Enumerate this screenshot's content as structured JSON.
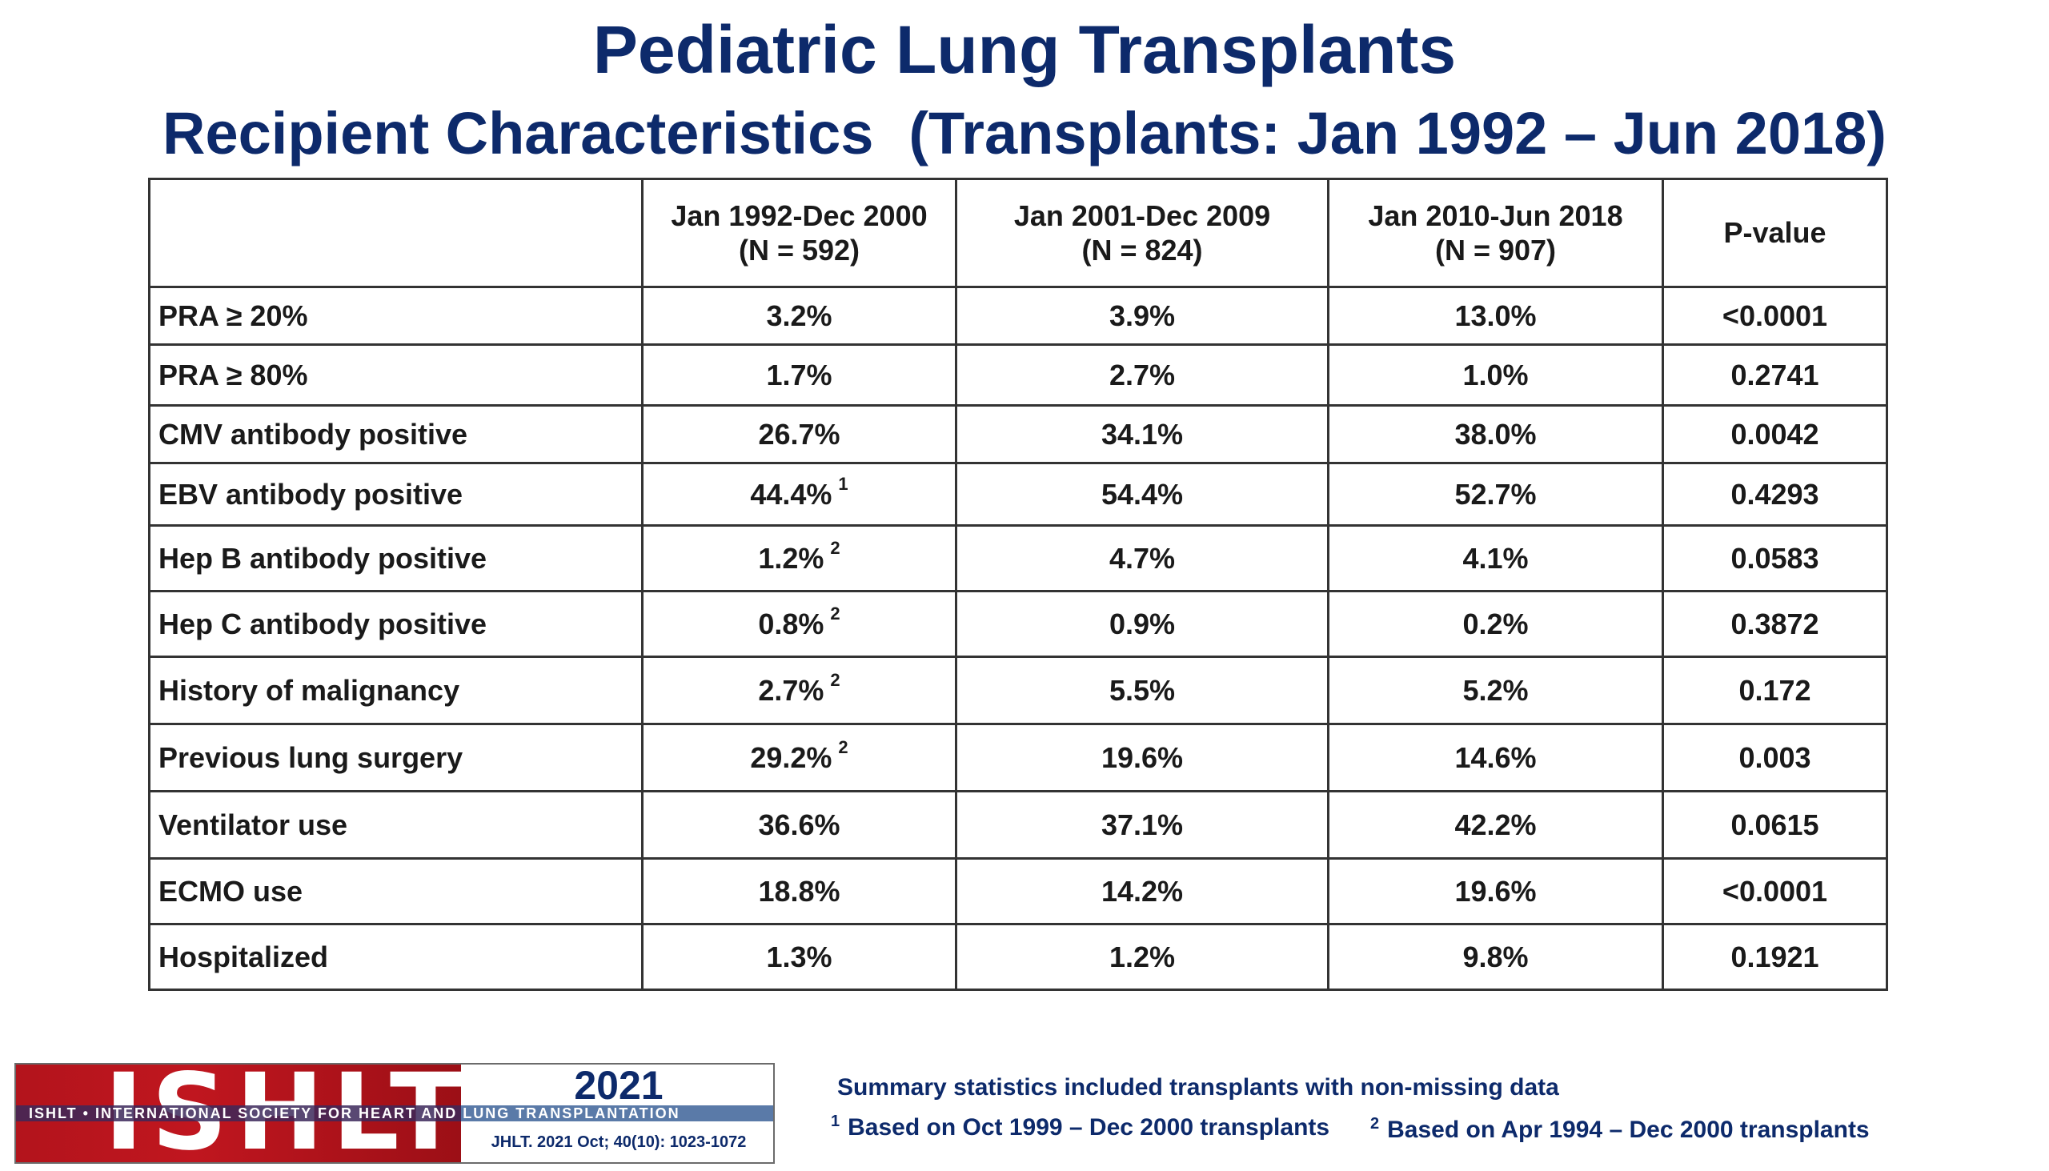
{
  "title": "Pediatric Lung Transplants",
  "subtitle_left": "Recipient Characteristics",
  "subtitle_right": "(Transplants: Jan 1992 – Jun 2018)",
  "table": {
    "headers": [
      {
        "line1": "",
        "line2": ""
      },
      {
        "line1": "Jan 1992-Dec 2000",
        "line2": "(N = 592)"
      },
      {
        "line1": "Jan 2001-Dec 2009",
        "line2": "(N = 824)"
      },
      {
        "line1": "Jan 2010-Jun 2018",
        "line2": "(N = 907)"
      },
      {
        "line1": "P-value",
        "line2": ""
      }
    ],
    "rows": [
      {
        "label": "PRA ≥ 20%",
        "c1": "3.2%",
        "c1_note": "",
        "c2": "3.9%",
        "c3": "13.0%",
        "p": "<0.0001"
      },
      {
        "label": "PRA ≥ 80%",
        "c1": "1.7%",
        "c1_note": "",
        "c2": "2.7%",
        "c3": "1.0%",
        "p": "0.2741"
      },
      {
        "label": "CMV antibody positive",
        "c1": "26.7%",
        "c1_note": "",
        "c2": "34.1%",
        "c3": "38.0%",
        "p": "0.0042"
      },
      {
        "label": "EBV antibody positive",
        "c1": "44.4%",
        "c1_note": "1",
        "c2": "54.4%",
        "c3": "52.7%",
        "p": "0.4293"
      },
      {
        "label": "Hep B antibody positive",
        "c1": "1.2%",
        "c1_note": "2",
        "c2": "4.7%",
        "c3": "4.1%",
        "p": "0.0583"
      },
      {
        "label": "Hep C antibody positive",
        "c1": "0.8%",
        "c1_note": "2",
        "c2": "0.9%",
        "c3": "0.2%",
        "p": "0.3872"
      },
      {
        "label": "History of malignancy",
        "c1": "2.7%",
        "c1_note": "2",
        "c2": "5.5%",
        "c3": "5.2%",
        "p": "0.172"
      },
      {
        "label": "Previous lung surgery",
        "c1": "29.2%",
        "c1_note": "2",
        "c2": "19.6%",
        "c3": "14.6%",
        "p": "0.003"
      },
      {
        "label": "Ventilator use",
        "c1": "36.6%",
        "c1_note": "",
        "c2": "37.1%",
        "c3": "42.2%",
        "p": "0.0615"
      },
      {
        "label": "ECMO use",
        "c1": "18.8%",
        "c1_note": "",
        "c2": "14.2%",
        "c3": "19.6%",
        "p": "<0.0001"
      },
      {
        "label": "Hospitalized",
        "c1": "1.3%",
        "c1_note": "",
        "c2": "1.2%",
        "c3": "9.8%",
        "p": "0.1921"
      }
    ]
  },
  "logo": {
    "letters": "ISHLT",
    "band_text": "ISHLT • INTERNATIONAL SOCIETY FOR HEART AND LUNG TRANSPLANTATION",
    "year": "2021",
    "citation": "JHLT. 2021 Oct; 40(10): 1023-1072"
  },
  "footnotes": {
    "summary": "Summary statistics included transplants with non-missing data",
    "note1_marker": "1",
    "note1": "Based on Oct 1999 – Dec 2000 transplants",
    "note2_marker": "2",
    "note2": "Based on Apr 1994 – Dec 2000 transplants"
  },
  "colors": {
    "title": "#0d2a6b",
    "logo_red": "#b3141c",
    "table_border": "#333333"
  }
}
